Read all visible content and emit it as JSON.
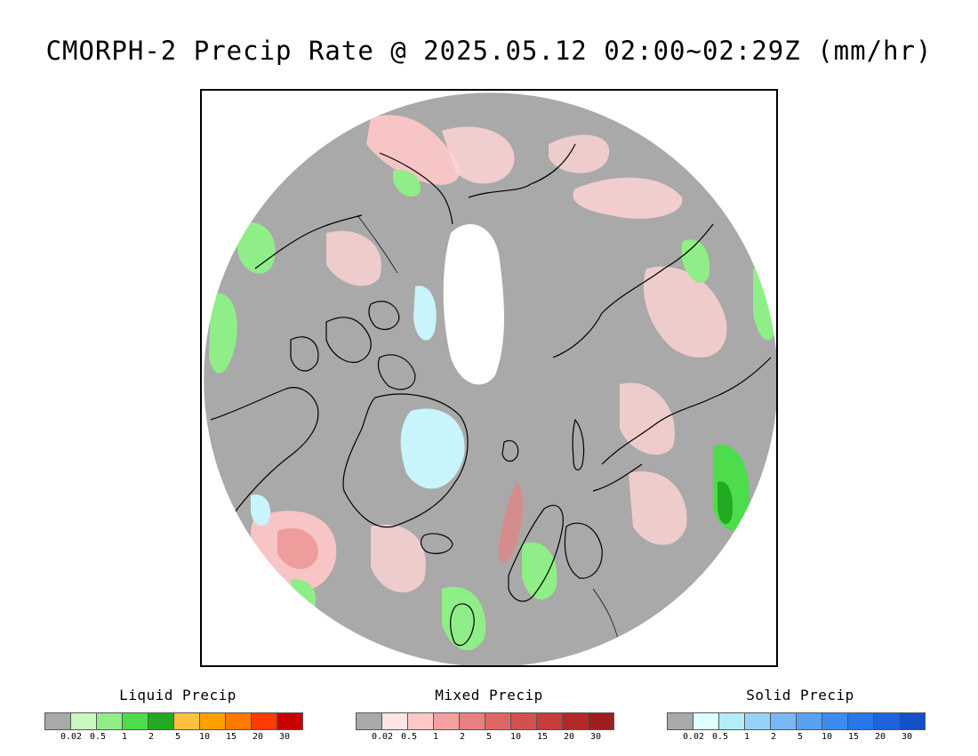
{
  "title": "CMORPH-2 Precip Rate @ 2025.05.12 02:00~02:29Z (mm/hr)",
  "map": {
    "projection": "north-polar-stereographic",
    "background_color": "#a9a9a9",
    "ice_color": "#ffffff",
    "coastline_color": "#000000"
  },
  "legends": [
    {
      "title": "Liquid Precip",
      "colors": [
        "#a9a9a9",
        "#c8f8c0",
        "#90ee88",
        "#4cdc4c",
        "#22aa22",
        "#ffc040",
        "#ffa000",
        "#ff7800",
        "#ff3c00",
        "#c80000"
      ],
      "ticks": [
        "0.02",
        "0.5",
        "1",
        "2",
        "5",
        "10",
        "15",
        "20",
        "30"
      ]
    },
    {
      "title": "Mixed Precip",
      "colors": [
        "#a9a9a9",
        "#ffe4e4",
        "#ffc8c8",
        "#f4a0a0",
        "#e88080",
        "#e06666",
        "#d45050",
        "#c83c3c",
        "#b42828",
        "#a01e1e"
      ],
      "ticks": [
        "0.02",
        "0.5",
        "1",
        "2",
        "5",
        "10",
        "15",
        "20",
        "30"
      ]
    },
    {
      "title": "Solid Precip",
      "colors": [
        "#a9a9a9",
        "#e0ffff",
        "#b4ecf8",
        "#96d2f8",
        "#78b8f4",
        "#5aa0f0",
        "#3c8cf0",
        "#2878e8",
        "#1e64dc",
        "#1450c8"
      ],
      "ticks": [
        "0.02",
        "0.5",
        "1",
        "2",
        "5",
        "10",
        "15",
        "20",
        "30"
      ]
    }
  ]
}
